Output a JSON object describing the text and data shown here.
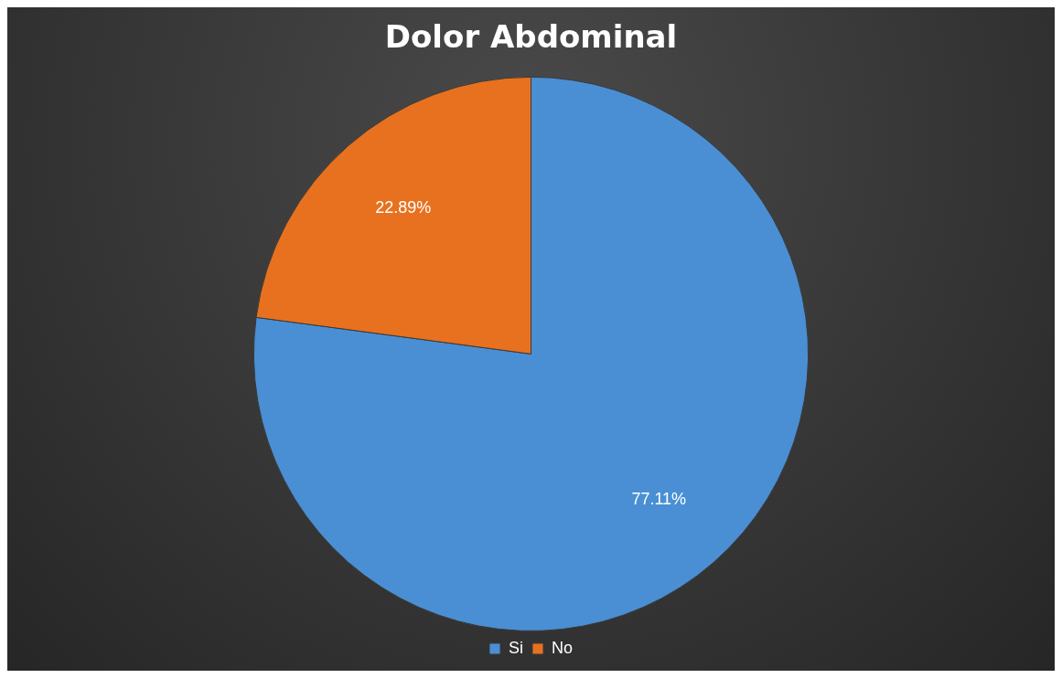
{
  "chart_data": {
    "type": "pie",
    "title": "Dolor Abdominal",
    "categories": [
      "Si",
      "No"
    ],
    "values": [
      77.11,
      22.89
    ],
    "colors": [
      "#4a8fd4",
      "#e8711f"
    ],
    "value_labels": [
      "77.11%",
      "22.89%"
    ],
    "legend": "bottom"
  }
}
